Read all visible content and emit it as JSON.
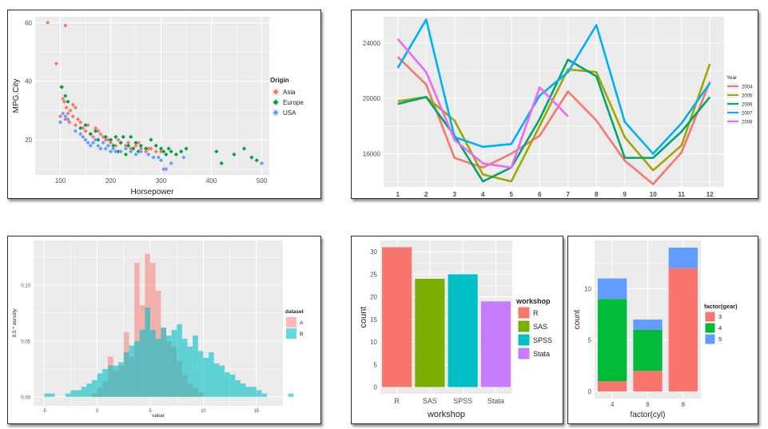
{
  "colors": {
    "panel_bg": "#ebebeb",
    "grid": "#ffffff",
    "axis_text": "#4d4d4d",
    "series": {
      "asia": "#f8766d",
      "europe": "#00a03c",
      "usa": "#619cff",
      "y2004": "#f8766d",
      "y2005": "#a3a500",
      "y2006": "#00a56f",
      "y2007": "#00b0f6",
      "y2008": "#e76bf3",
      "dsA": "#f8766d",
      "dsB": "#00bfc4",
      "R": "#f8766d",
      "SAS": "#7cae00",
      "SPSS": "#00bfc4",
      "Stata": "#c77cff",
      "gear3": "#f8766d",
      "gear4": "#00ba38",
      "gear5": "#619cff"
    }
  },
  "chart_data": [
    {
      "id": "scatter",
      "type": "scatter",
      "title": "",
      "xlabel": "Horsepower",
      "ylabel": "MPG.City",
      "xlim": [
        50,
        515
      ],
      "ylim": [
        8,
        62
      ],
      "xticks": [
        100,
        200,
        300,
        400,
        500
      ],
      "yticks": [
        20,
        40,
        60
      ],
      "legend_title": "Origin",
      "legend_position": "right",
      "series": [
        {
          "name": "Asia",
          "color_key": "asia",
          "points": [
            [
              75,
              60
            ],
            [
              110,
              59
            ],
            [
              92,
              46
            ],
            [
              102,
              38
            ],
            [
              105,
              34
            ],
            [
              108,
              33
            ],
            [
              112,
              31
            ],
            [
              100,
              28
            ],
            [
              115,
              29
            ],
            [
              120,
              30
            ],
            [
              125,
              32
            ],
            [
              130,
              31
            ],
            [
              110,
              27
            ],
            [
              118,
              26
            ],
            [
              130,
              25
            ],
            [
              140,
              26
            ],
            [
              145,
              24
            ],
            [
              150,
              23
            ],
            [
              160,
              22
            ],
            [
              165,
              21
            ],
            [
              170,
              24
            ],
            [
              180,
              22
            ],
            [
              185,
              21
            ],
            [
              190,
              20
            ],
            [
              200,
              19
            ],
            [
              210,
              18
            ],
            [
              220,
              19
            ],
            [
              230,
              18
            ],
            [
              240,
              17
            ],
            [
              250,
              18
            ],
            [
              260,
              17
            ],
            [
              270,
              16
            ],
            [
              280,
              17
            ],
            [
              290,
              16
            ],
            [
              300,
              16
            ],
            [
              135,
              27
            ],
            [
              125,
              28
            ],
            [
              155,
              25
            ],
            [
              175,
              23
            ],
            [
              195,
              20
            ],
            [
              215,
              20
            ],
            [
              235,
              19
            ],
            [
              255,
              19
            ],
            [
              275,
              17
            ]
          ]
        },
        {
          "name": "Europe",
          "color_key": "europe",
          "points": [
            [
              103,
              38
            ],
            [
              110,
              35
            ],
            [
              115,
              33
            ],
            [
              140,
              24
            ],
            [
              150,
              25
            ],
            [
              160,
              22
            ],
            [
              170,
              23
            ],
            [
              175,
              20
            ],
            [
              190,
              21
            ],
            [
              200,
              20
            ],
            [
              205,
              18
            ],
            [
              210,
              21
            ],
            [
              215,
              16
            ],
            [
              220,
              19
            ],
            [
              225,
              21
            ],
            [
              230,
              15
            ],
            [
              235,
              18
            ],
            [
              240,
              21
            ],
            [
              245,
              17
            ],
            [
              250,
              19
            ],
            [
              255,
              16
            ],
            [
              260,
              18
            ],
            [
              270,
              17
            ],
            [
              280,
              20
            ],
            [
              290,
              18
            ],
            [
              300,
              17
            ],
            [
              305,
              16
            ],
            [
              310,
              15
            ],
            [
              315,
              17
            ],
            [
              320,
              16
            ],
            [
              330,
              15
            ],
            [
              340,
              16
            ],
            [
              350,
              17
            ],
            [
              410,
              16
            ],
            [
              420,
              12
            ],
            [
              445,
              15
            ],
            [
              465,
              17
            ],
            [
              480,
              14
            ],
            [
              490,
              13
            ]
          ]
        },
        {
          "name": "USA",
          "color_key": "usa",
          "points": [
            [
              105,
              29
            ],
            [
              110,
              28
            ],
            [
              115,
              27
            ],
            [
              100,
              26
            ],
            [
              130,
              23
            ],
            [
              140,
              22
            ],
            [
              145,
              21
            ],
            [
              150,
              20
            ],
            [
              155,
              19
            ],
            [
              160,
              18
            ],
            [
              165,
              19
            ],
            [
              170,
              20
            ],
            [
              175,
              18
            ],
            [
              180,
              17
            ],
            [
              185,
              19
            ],
            [
              190,
              17
            ],
            [
              195,
              18
            ],
            [
              200,
              16
            ],
            [
              205,
              17
            ],
            [
              210,
              16
            ],
            [
              220,
              16
            ],
            [
              230,
              17
            ],
            [
              240,
              16
            ],
            [
              250,
              15
            ],
            [
              260,
              16
            ],
            [
              275,
              15
            ],
            [
              285,
              14
            ],
            [
              295,
              14
            ],
            [
              300,
              13
            ],
            [
              305,
              10
            ],
            [
              310,
              10
            ],
            [
              320,
              12
            ],
            [
              345,
              14
            ],
            [
              500,
              12
            ]
          ]
        }
      ]
    },
    {
      "id": "line",
      "type": "line",
      "title": "",
      "xlabel": "",
      "ylabel": "",
      "categories": [
        1,
        2,
        3,
        4,
        5,
        6,
        7,
        8,
        9,
        10,
        11,
        12
      ],
      "xlim": [
        0.5,
        12.5
      ],
      "ylim": [
        13600,
        25900
      ],
      "yticks": [
        16000,
        20000,
        24000
      ],
      "legend_title": "Year",
      "legend_position": "right",
      "series": [
        {
          "name": "2004",
          "color_key": "y2004",
          "values": [
            23000,
            21000,
            15700,
            15000,
            16000,
            17300,
            20500,
            18400,
            15500,
            13800,
            16100,
            21200
          ]
        },
        {
          "name": "2005",
          "color_key": "y2005",
          "values": [
            19800,
            20100,
            18400,
            14500,
            14000,
            18000,
            22100,
            21900,
            17200,
            14800,
            16600,
            22500
          ]
        },
        {
          "name": "2006",
          "color_key": "y2006",
          "values": [
            19600,
            20100,
            17300,
            14000,
            15000,
            18500,
            22800,
            21600,
            15700,
            15700,
            17600,
            20100
          ]
        },
        {
          "name": "2007",
          "color_key": "y2007",
          "values": [
            22200,
            25700,
            17200,
            16500,
            16700,
            20200,
            21900,
            25300,
            18300,
            16000,
            18200,
            21100
          ]
        },
        {
          "name": "2008",
          "color_key": "y2008",
          "values": [
            24300,
            21900,
            17000,
            15300,
            15000,
            20800,
            18700,
            null,
            null,
            null,
            null,
            null
          ]
        }
      ]
    },
    {
      "id": "histogram",
      "type": "bar",
      "title": "",
      "xlabel": "value",
      "ylabel": "0.5 * density",
      "bin_start": -5,
      "bin_width": 0.5,
      "xlim": [
        -6,
        17.5
      ],
      "ylim": [
        -0.008,
        0.14
      ],
      "xticks": [
        -5,
        0,
        5,
        10,
        15
      ],
      "yticks": [
        0.0,
        0.05,
        0.1
      ],
      "ytick_labels": [
        "0.00",
        "0.05",
        "0.10"
      ],
      "legend_title": "dataset",
      "legend_position": "right",
      "series": [
        {
          "name": "A",
          "color_key": "dsA",
          "values": [
            0,
            0,
            0,
            0,
            0,
            0,
            0,
            0,
            0,
            0.003,
            0.008,
            0.014,
            0.036,
            0.023,
            0.028,
            0.058,
            0.036,
            0.12,
            0.082,
            0.128,
            0.12,
            0.095,
            0.062,
            0.05,
            0.045,
            0.032,
            0.02,
            0.012,
            0.008,
            0.004,
            0,
            0,
            0,
            0,
            0,
            0,
            0,
            0,
            0,
            0,
            0,
            0,
            0,
            0,
            0,
            0,
            0,
            0
          ]
        },
        {
          "name": "B",
          "color_key": "dsB",
          "values": [
            0.003,
            0.003,
            0,
            0,
            0.003,
            0.006,
            0.006,
            0.009,
            0.012,
            0.015,
            0.021,
            0.025,
            0.028,
            0.028,
            0.031,
            0.04,
            0.046,
            0.05,
            0.06,
            0.08,
            0.06,
            0.052,
            0.062,
            0.055,
            0.06,
            0.065,
            0.052,
            0.045,
            0.055,
            0.041,
            0.035,
            0.04,
            0.03,
            0.028,
            0.022,
            0.02,
            0.015,
            0.012,
            0.009,
            0.009,
            0.006,
            0.003,
            0,
            0,
            0,
            0,
            0.003,
            0
          ]
        }
      ]
    },
    {
      "id": "bar",
      "type": "bar",
      "title": "",
      "xlabel": "workshop",
      "ylabel": "count",
      "categories": [
        "R",
        "SAS",
        "SPSS",
        "Stata"
      ],
      "values": [
        31,
        24,
        25,
        19
      ],
      "ylim": [
        -1.5,
        32.5
      ],
      "yticks": [
        0,
        5,
        10,
        15,
        20,
        25,
        30
      ],
      "legend_title": "workshop",
      "legend_position": "right"
    },
    {
      "id": "stacked",
      "type": "bar",
      "title": "",
      "xlabel": "factor(cyl)",
      "ylabel": "count",
      "categories": [
        "4",
        "6",
        "8"
      ],
      "ylim": [
        -0.7,
        14.7
      ],
      "yticks": [
        0,
        5,
        10
      ],
      "legend_title": "factor(gear)",
      "legend_position": "right",
      "series": [
        {
          "name": "3",
          "color_key": "gear3",
          "values": [
            1,
            2,
            12
          ]
        },
        {
          "name": "4",
          "color_key": "gear4",
          "values": [
            8,
            4,
            0
          ]
        },
        {
          "name": "5",
          "color_key": "gear5",
          "values": [
            2,
            1,
            2
          ]
        }
      ]
    }
  ]
}
